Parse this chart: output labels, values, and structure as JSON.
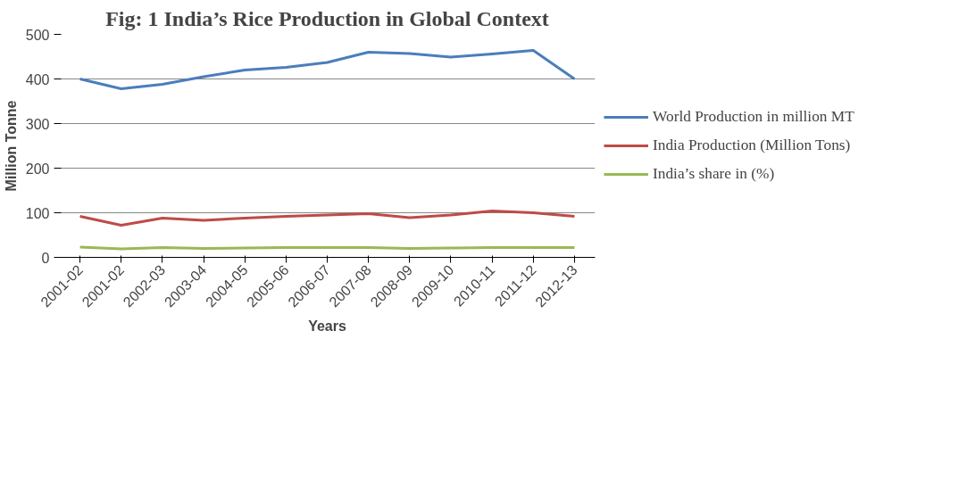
{
  "chart_data": {
    "type": "line",
    "title": "Fig: 1 India’s Rice Production in Global Context",
    "xlabel": "Years",
    "ylabel": "Million Tonne",
    "categories": [
      "2001-02",
      "2001-02",
      "2002-03",
      "2003-04",
      "2004-05",
      "2005-06",
      "2006-07",
      "2007-08",
      "2008-09",
      "2009-10",
      "2010-11",
      "2011-12",
      "2012-13"
    ],
    "series": [
      {
        "name": "World Production in million MT",
        "color": "#4a7ebb",
        "values": [
          400,
          378,
          388,
          405,
          420,
          426,
          437,
          460,
          457,
          449,
          456,
          464,
          400
        ]
      },
      {
        "name": "India Production (Million Tons)",
        "color": "#be4b48",
        "values": [
          92,
          72,
          88,
          83,
          88,
          92,
          95,
          98,
          89,
          95,
          104,
          100,
          92
        ]
      },
      {
        "name": "India’s share in (%)",
        "color": "#98b954",
        "values": [
          23,
          19,
          22,
          20,
          21,
          22,
          22,
          22,
          20,
          21,
          22,
          22,
          22
        ]
      }
    ],
    "ylim": [
      0,
      500
    ],
    "yticks": [
      0,
      100,
      200,
      300,
      400,
      500
    ],
    "grid": "y",
    "legend": "right"
  }
}
